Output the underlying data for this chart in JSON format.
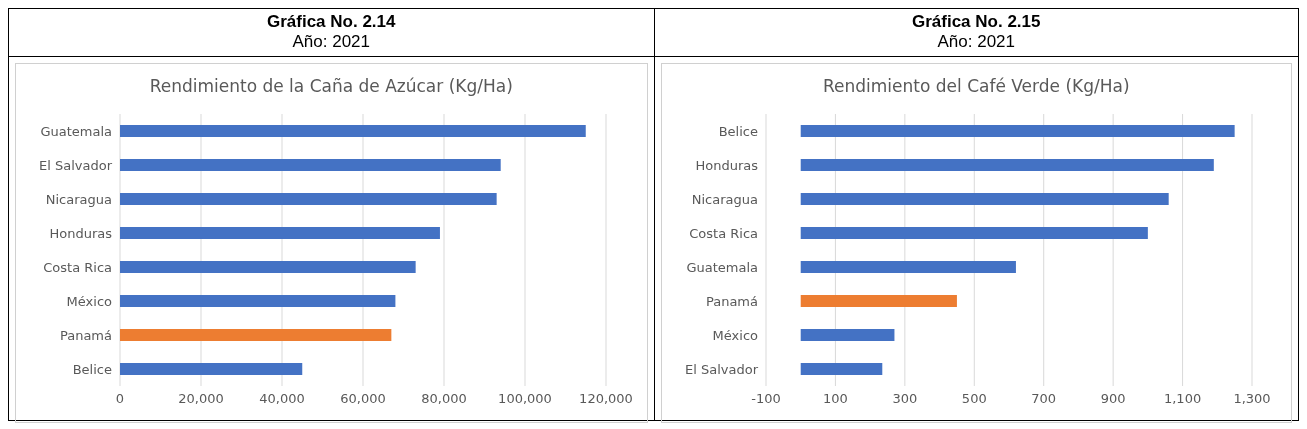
{
  "chart_data": [
    {
      "type": "bar",
      "orientation": "horizontal",
      "title": "Rendimiento de la Caña de Azúcar (Kg/Ha)",
      "annotations": [
        "Gráfica No. 2.14",
        "Año: 2021"
      ],
      "categories": [
        "Guatemala",
        "El Salvador",
        "Nicaragua",
        "Honduras",
        "Costa Rica",
        "México",
        "Panamá",
        "Belice"
      ],
      "values": [
        115000,
        94000,
        93000,
        79000,
        73000,
        68000,
        67000,
        45000
      ],
      "colors": [
        "#4472c4",
        "#4472c4",
        "#4472c4",
        "#4472c4",
        "#4472c4",
        "#4472c4",
        "#ed7d31",
        "#4472c4"
      ],
      "xlim": [
        0,
        120000
      ],
      "xticks": [
        0,
        {
          "value": 20000,
          "label": "20,000"
        },
        {
          "value": 40000,
          "label": "40,000"
        },
        {
          "value": 60000,
          "label": "60,000"
        },
        {
          "value": 80000,
          "label": "80,000"
        },
        {
          "value": 100000,
          "label": "100,000"
        },
        {
          "value": 120000,
          "label": "120,000"
        }
      ],
      "grid": "x",
      "legend": false
    },
    {
      "type": "bar",
      "orientation": "horizontal",
      "title": "Rendimiento del Café Verde (Kg/Ha)",
      "annotations": [
        "Gráfica No. 2.15",
        "Año: 2021"
      ],
      "categories": [
        "Belice",
        "Honduras",
        "Nicaragua",
        "Costa Rica",
        "Guatemala",
        "Panamá",
        "México",
        "El Salvador"
      ],
      "values": [
        1250,
        1190,
        1060,
        1000,
        620,
        450,
        270,
        235
      ],
      "colors": [
        "#4472c4",
        "#4472c4",
        "#4472c4",
        "#4472c4",
        "#4472c4",
        "#ed7d31",
        "#4472c4",
        "#4472c4"
      ],
      "xlim": [
        -100,
        1300
      ],
      "xticks": [
        -100,
        100,
        300,
        500,
        700,
        900,
        {
          "value": 1100,
          "label": "1,100"
        },
        {
          "value": 1300,
          "label": "1,300"
        }
      ],
      "grid": "x",
      "legend": false
    }
  ]
}
